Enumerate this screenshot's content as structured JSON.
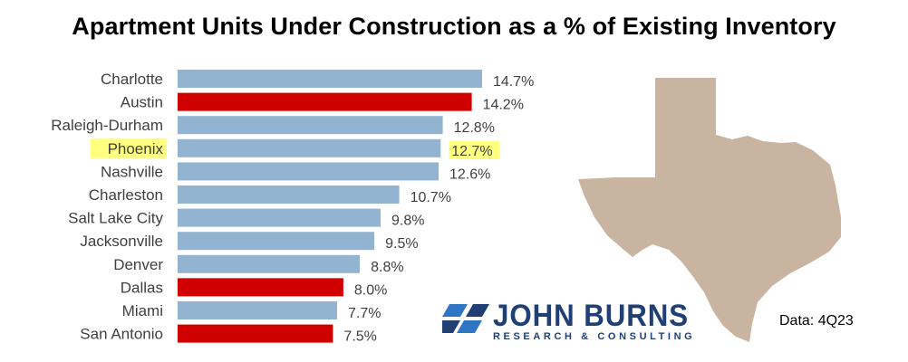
{
  "title": "Apartment Units Under Construction as a % of Existing Inventory",
  "source": "Data: 4Q23",
  "logo": {
    "main": "JOHN BURNS",
    "sub": "RESEARCH & CONSULTING"
  },
  "colors": {
    "default_bar": "#92b4d0",
    "texas_bar": "#d00000",
    "highlight": "#ffff80",
    "map_fill": "#c8b4a0",
    "logo_blue": "#1f3f75",
    "logo_light_blue": "#2e76c4"
  },
  "chart_data": {
    "type": "bar",
    "orientation": "horizontal",
    "categories": [
      "Charlotte",
      "Austin",
      "Raleigh-Durham",
      "Phoenix",
      "Nashville",
      "Charleston",
      "Salt Lake City",
      "Jacksonville",
      "Denver",
      "Dallas",
      "Miami",
      "San Antonio"
    ],
    "values": [
      14.7,
      14.2,
      12.8,
      12.7,
      12.6,
      10.7,
      9.8,
      9.5,
      8.8,
      8.0,
      7.7,
      7.5
    ],
    "value_labels": [
      "14.7%",
      "14.2%",
      "12.8%",
      "12.7%",
      "12.6%",
      "10.7%",
      "9.8%",
      "9.5%",
      "8.8%",
      "8.0%",
      "7.7%",
      "7.5%"
    ],
    "texas_metros": [
      "Austin",
      "Dallas",
      "San Antonio"
    ],
    "highlighted": [
      "Phoenix"
    ],
    "xlim": [
      0,
      14.7
    ],
    "grid": false,
    "legend": "none"
  }
}
